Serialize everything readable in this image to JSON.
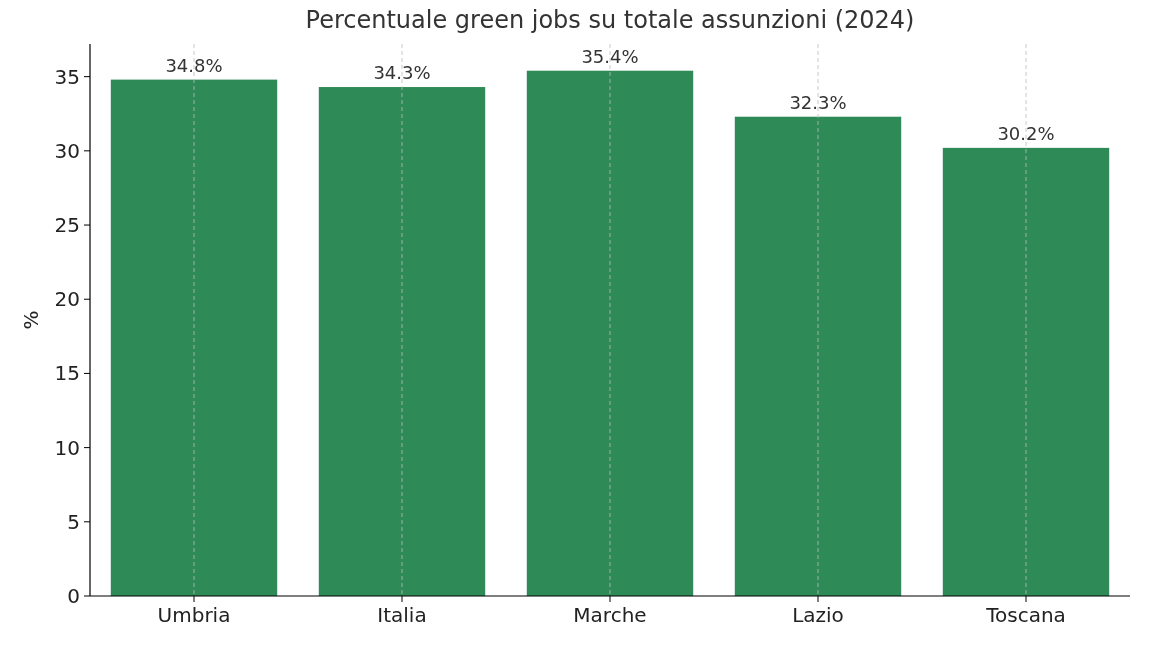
{
  "chart_data": {
    "type": "bar",
    "title": "Percentuale green jobs su totale assunzioni (2024)",
    "ylabel": "%",
    "categories": [
      "Umbria",
      "Italia",
      "Marche",
      "Lazio",
      "Toscana"
    ],
    "values": [
      34.8,
      34.3,
      35.4,
      32.3,
      30.2
    ],
    "color": "#2e8b57",
    "value_labels": [
      "34.8%",
      "34.3%",
      "35.4%",
      "32.3%",
      "30.2%"
    ],
    "ylim": [
      0,
      37.2
    ],
    "yticks": [
      0,
      5,
      10,
      15,
      20,
      25,
      30,
      35
    ],
    "grid": "x"
  }
}
